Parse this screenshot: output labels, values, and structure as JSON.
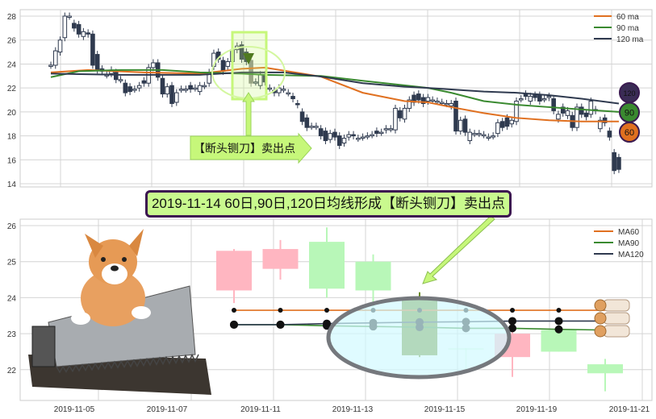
{
  "annotations": {
    "sell_label": "【断头铡刀】卖出点",
    "headline": "2019-11-14 60日,90日,120日均线形成【断头铡刀】卖出点",
    "badges": [
      "120",
      "90",
      "60"
    ],
    "colors": {
      "highlight": "#c6f77a",
      "headline_bg": "#c9f98e",
      "headline_border": "#3c1450"
    }
  },
  "chart_data": [
    {
      "type": "candlestick",
      "ylim": [
        14,
        28.8
      ],
      "yticks": [
        "14",
        "16",
        "18",
        "20",
        "22",
        "24",
        "26",
        "28"
      ],
      "grid": true,
      "legend_position": "top-right",
      "candles_open_close": [
        [
          23.9,
          23.9
        ],
        [
          23.9,
          25.1
        ],
        [
          25,
          26
        ],
        [
          26.2,
          28
        ],
        [
          28,
          28
        ],
        [
          27.4,
          27
        ],
        [
          27.3,
          26.5
        ],
        [
          26.3,
          26.7
        ],
        [
          26.6,
          26.5
        ],
        [
          26.5,
          23.9
        ],
        [
          24.8,
          23.5
        ],
        [
          23.6,
          23.4
        ],
        [
          23.1,
          23.1
        ],
        [
          23.2,
          23.5
        ],
        [
          23.3,
          22.7
        ],
        [
          22.7,
          22.7
        ],
        [
          22.4,
          21.6
        ],
        [
          22.1,
          21.7
        ],
        [
          21.9,
          21.9
        ],
        [
          22,
          22.2
        ],
        [
          22.6,
          22.4
        ],
        [
          22.4,
          23.7
        ],
        [
          23.7,
          24.1
        ],
        [
          24.1,
          22.9
        ],
        [
          22.8,
          21.5
        ],
        [
          21.5,
          22.1
        ],
        [
          22.2,
          20.7
        ],
        [
          20.8,
          21.6
        ],
        [
          21.9,
          21.9
        ],
        [
          21.9,
          21.9
        ],
        [
          22.2,
          21.9
        ],
        [
          22,
          22
        ],
        [
          21.7,
          22.2
        ],
        [
          22.2,
          22.2
        ],
        [
          22.4,
          23.3
        ],
        [
          23.8,
          24.9
        ],
        [
          25,
          24.4
        ],
        [
          24.3,
          23.4
        ],
        [
          23.8,
          24.2
        ],
        [
          24.2,
          25.2
        ],
        [
          25.2,
          25.5
        ],
        [
          25.6,
          24.4
        ],
        [
          25,
          24.2
        ],
        [
          24.3,
          22.4
        ],
        [
          22.5,
          22.5
        ],
        [
          22.2,
          23.1
        ],
        [
          23.1,
          22.5
        ],
        [
          22,
          22
        ],
        [
          21.8,
          21.6
        ],
        [
          21.6,
          22
        ],
        [
          21.9,
          21.9
        ],
        [
          21.6,
          21.6
        ],
        [
          21.3,
          21.1
        ],
        [
          20.7,
          20.6
        ],
        [
          20,
          19.2
        ],
        [
          19.5,
          18.7
        ],
        [
          18.8,
          18.8
        ],
        [
          18.8,
          18.8
        ],
        [
          18.6,
          18
        ],
        [
          18.4,
          17.6
        ],
        [
          17.7,
          18.2
        ],
        [
          18.3,
          17.9
        ],
        [
          18,
          17.2
        ],
        [
          17.4,
          17.8
        ],
        [
          17.9,
          18.1
        ],
        [
          18.1,
          18
        ],
        [
          17.8,
          17.8
        ],
        [
          17.9,
          17.9
        ],
        [
          18,
          18
        ],
        [
          18.1,
          18.1
        ],
        [
          18.4,
          18.2
        ],
        [
          18.3,
          18.3
        ],
        [
          18.5,
          18.6
        ],
        [
          18.6,
          18.6
        ],
        [
          18.5,
          20.3
        ],
        [
          20.1,
          19.5
        ],
        [
          19.4,
          20.3
        ],
        [
          20.3,
          21
        ],
        [
          21.4,
          20.8
        ],
        [
          21.5,
          21
        ],
        [
          21.2,
          20.7
        ],
        [
          20.9,
          21.2
        ],
        [
          21,
          21
        ],
        [
          20.9,
          20.9
        ],
        [
          20.8,
          20.8
        ],
        [
          20.7,
          20.7
        ],
        [
          20.5,
          20.7
        ],
        [
          20.9,
          18.4
        ],
        [
          18.4,
          19.3
        ],
        [
          19.4,
          18.3
        ],
        [
          17.6,
          18.3
        ],
        [
          18.2,
          18.2
        ],
        [
          18.2,
          18.2
        ],
        [
          18.1,
          18.1
        ],
        [
          17.9,
          17.9
        ],
        [
          18,
          18
        ],
        [
          18.2,
          19.1
        ],
        [
          19.2,
          18.7
        ],
        [
          19.5,
          18.8
        ],
        [
          19,
          19.3
        ],
        [
          19.2,
          20.9
        ],
        [
          21.1,
          21.1
        ],
        [
          21.5,
          21.3
        ],
        [
          20.9,
          21.3
        ],
        [
          21.4,
          21.2
        ],
        [
          21.4,
          20.9
        ],
        [
          21.1,
          21.1
        ],
        [
          21.2,
          21.3
        ],
        [
          21.1,
          20.1
        ],
        [
          19.4,
          19.8
        ],
        [
          20.4,
          19.9
        ],
        [
          19.7,
          20.1
        ],
        [
          19.7,
          18.7
        ],
        [
          18.7,
          20.4
        ],
        [
          20.4,
          19.8
        ],
        [
          19.9,
          19.6
        ],
        [
          19.8,
          20.9
        ],
        [
          20.2,
          20.1
        ],
        [
          18.6,
          19.3
        ],
        [
          19.5,
          19.1
        ],
        [
          18.4,
          17.9
        ],
        [
          16.6,
          15.1
        ],
        [
          16.2,
          15.2
        ]
      ],
      "series": [
        {
          "name": "60 ma",
          "color": "#e07020",
          "points": [
            [
              1,
              23.3
            ],
            [
              9,
              23.5
            ],
            [
              21,
              23.3
            ],
            [
              33,
              23.2
            ],
            [
              42,
              23.6
            ],
            [
              47,
              23.7
            ],
            [
              59,
              22.95
            ],
            [
              68,
              21.6
            ],
            [
              77,
              20.9
            ],
            [
              82,
              20.8
            ],
            [
              87,
              20.4
            ],
            [
              94,
              19.9
            ],
            [
              101,
              19.5
            ],
            [
              108,
              19.3
            ],
            [
              115,
              19.2
            ],
            [
              123,
              19.2
            ]
          ]
        },
        {
          "name": "90 ma",
          "color": "#3a8a30",
          "points": [
            [
              1,
              22.9
            ],
            [
              7,
              23.4
            ],
            [
              16,
              23.5
            ],
            [
              25,
              23.5
            ],
            [
              33,
              23.3
            ],
            [
              42,
              23.2
            ],
            [
              47,
              23.1
            ],
            [
              59,
              23.0
            ],
            [
              68,
              22.6
            ],
            [
              82,
              22.0
            ],
            [
              87,
              21.6
            ],
            [
              94,
              20.9
            ],
            [
              101,
              20.6
            ],
            [
              108,
              20.4
            ],
            [
              115,
              20.2
            ],
            [
              123,
              20.0
            ]
          ]
        },
        {
          "name": "120 ma",
          "color": "#2f3a4f",
          "points": [
            [
              1,
              23.2
            ],
            [
              16,
              23.1
            ],
            [
              33,
              23.1
            ],
            [
              42,
              23.3
            ],
            [
              51,
              23.3
            ],
            [
              59,
              22.95
            ],
            [
              68,
              22.4
            ],
            [
              77,
              22.1
            ],
            [
              82,
              22.0
            ],
            [
              94,
              21.7
            ],
            [
              101,
              21.6
            ],
            [
              108,
              21.4
            ],
            [
              115,
              21.1
            ],
            [
              123,
              20.7
            ]
          ]
        }
      ]
    },
    {
      "type": "candlestick",
      "ylim": [
        21.1,
        26.2
      ],
      "yticks": [
        "22",
        "23",
        "24",
        "25",
        "26"
      ],
      "xticks": [
        "2019-11-05",
        "2019-11-07",
        "2019-11-11",
        "2019-11-13",
        "2019-11-15",
        "2019-11-19",
        "2019-11-21"
      ],
      "grid": true,
      "legend_position": "top-right",
      "candles": [
        {
          "o": 24.2,
          "c": 25.3,
          "h": 25.35,
          "l": 23.85,
          "color": "#ffb6c1"
        },
        {
          "o": 24.8,
          "c": 25.35,
          "h": 25.6,
          "l": 24.5,
          "color": "#ffb6c1"
        },
        {
          "o": 25.55,
          "c": 24.25,
          "h": 25.95,
          "l": 24.0,
          "color": "#b8f7b8"
        },
        {
          "o": 25.0,
          "c": 24.2,
          "h": 25.2,
          "l": 23.75,
          "color": "#b8f7b8"
        },
        {
          "o": 24.0,
          "c": 22.4,
          "h": 24.15,
          "l": 22.35,
          "color": "#6b8e23"
        },
        {
          "o": 22.6,
          "c": 22.55,
          "h": 22.6,
          "l": 21.9,
          "color": "#b8f7b8"
        },
        {
          "o": 22.35,
          "c": 23.0,
          "h": 23.1,
          "l": 21.8,
          "color": "#ffb6c1"
        },
        {
          "o": 23.1,
          "c": 22.5,
          "h": 23.1,
          "l": 22.5,
          "color": "#b8f7b8"
        },
        {
          "o": 22.15,
          "c": 21.9,
          "h": 22.3,
          "l": 21.4,
          "color": "#b8f7b8"
        }
      ],
      "series": [
        {
          "name": "MA60",
          "color": "#e07020",
          "values": [
            23.65,
            23.65,
            23.65,
            23.65,
            23.65,
            23.65,
            23.65,
            23.65,
            23.65
          ]
        },
        {
          "name": "MA90",
          "color": "#3a8a30",
          "values": [
            23.25,
            23.25,
            23.22,
            23.2,
            23.18,
            23.15,
            23.15,
            23.12,
            23.1
          ]
        },
        {
          "name": "MA120",
          "color": "#2f3a4f",
          "values": [
            23.25,
            23.25,
            23.28,
            23.3,
            23.32,
            23.33,
            23.35,
            23.35,
            23.35
          ]
        }
      ]
    }
  ]
}
